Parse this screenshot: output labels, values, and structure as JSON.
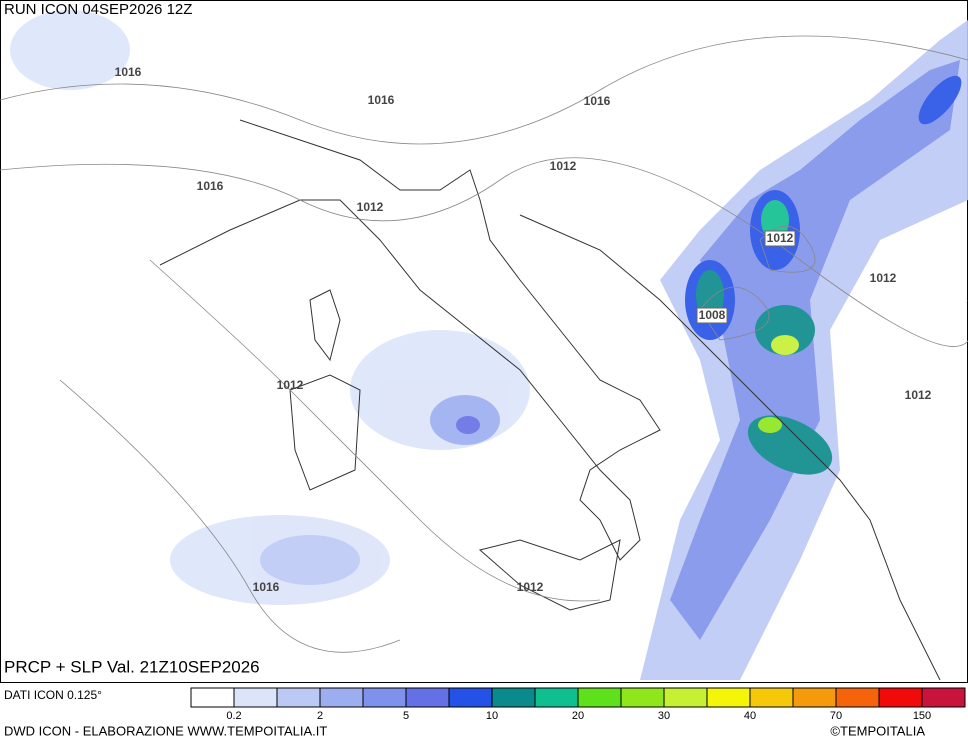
{
  "header": {
    "run": "RUN ICON 04SEP2026 12Z",
    "valid": "PRCP + SLP Val. 21Z10SEP2026"
  },
  "isobar_labels": [
    1016,
    1016,
    1016,
    1016,
    1012,
    1012,
    1012,
    1012,
    1008,
    1012,
    1012,
    1016,
    1012
  ],
  "legend": {
    "source": "DATI ICON 0.125°",
    "colors": [
      "#ffffff",
      "#dce4fa",
      "#bcc9f5",
      "#9caef0",
      "#7f92eb",
      "#6470e6",
      "#2552e6",
      "#0a8a8a",
      "#0fbf8f",
      "#5ee01a",
      "#8fe61a",
      "#c6f032",
      "#f5f50a",
      "#f5c80a",
      "#f59a0a",
      "#f5640a",
      "#f00a0a",
      "#c8143c"
    ],
    "labels": [
      0.2,
      2,
      5,
      10,
      20,
      30,
      40,
      70,
      150
    ]
  },
  "footer": {
    "credit": "DWD ICON - ELABORAZIONE WWW.TEMPOITALIA.IT",
    "copyright": "©TEMPOITALIA"
  }
}
